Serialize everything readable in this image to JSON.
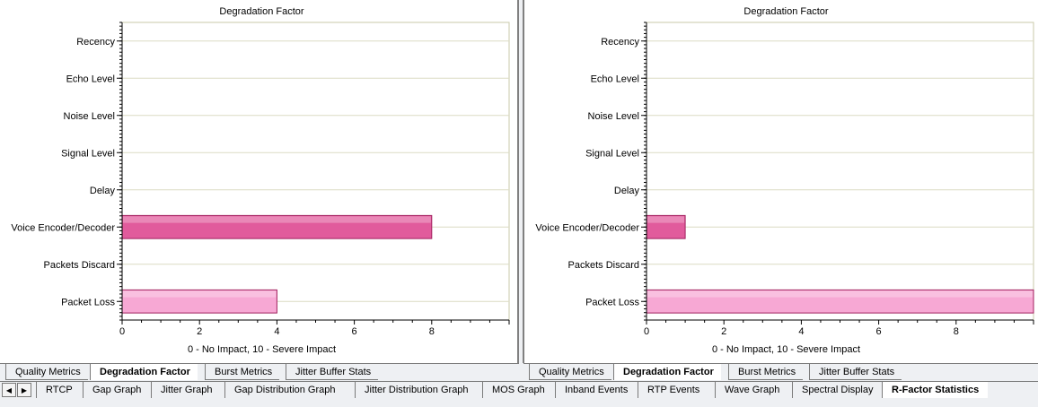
{
  "chart_data": [
    {
      "type": "bar",
      "orientation": "horizontal",
      "title": "Degradation Factor",
      "xlabel": "0 - No Impact, 10 - Severe Impact",
      "ylabel": "",
      "xlim": [
        0,
        10
      ],
      "xticks": [
        0,
        2,
        4,
        6,
        8
      ],
      "categories": [
        "Recency",
        "Echo Level",
        "Noise Level",
        "Signal Level",
        "Delay",
        "Voice Encoder/Decoder",
        "Packets Discard",
        "Packet Loss"
      ],
      "values": [
        0,
        0,
        0,
        0,
        0,
        8,
        0,
        4
      ],
      "bar_colors": {
        "Voice Encoder/Decoder": "#e15b9c",
        "Packet Loss": "#f7a8d4"
      },
      "grid": true
    },
    {
      "type": "bar",
      "orientation": "horizontal",
      "title": "Degradation Factor",
      "xlabel": "0 - No Impact, 10 - Severe Impact",
      "ylabel": "",
      "xlim": [
        0,
        10
      ],
      "xticks": [
        0,
        2,
        4,
        6,
        8
      ],
      "categories": [
        "Recency",
        "Echo Level",
        "Noise Level",
        "Signal Level",
        "Delay",
        "Voice Encoder/Decoder",
        "Packets Discard",
        "Packet Loss"
      ],
      "values": [
        0,
        0,
        0,
        0,
        0,
        1,
        0,
        10
      ],
      "bar_colors": {
        "Voice Encoder/Decoder": "#e15b9c",
        "Packet Loss": "#f7a8d4"
      },
      "grid": true
    }
  ],
  "left_tabs": [
    "Quality Metrics",
    "Degradation Factor",
    "Burst Metrics",
    "Jitter Buffer Stats"
  ],
  "right_tabs": [
    "Quality Metrics",
    "Degradation Factor",
    "Burst Metrics",
    "Jitter Buffer Stats"
  ],
  "active_inner_tab": "Degradation Factor",
  "bottom_nav": {
    "prev_icon": "◀",
    "next_icon": "▶"
  },
  "bottom_tabs": [
    "RTCP",
    "Gap Graph",
    "Jitter Graph",
    "Gap Distribution Graph",
    "Jitter Distribution Graph",
    "MOS Graph",
    "Inband Events",
    "RTP Events",
    "Wave Graph",
    "Spectral Display",
    "R-Factor Statistics"
  ],
  "active_bottom_tab": "R-Factor Statistics"
}
